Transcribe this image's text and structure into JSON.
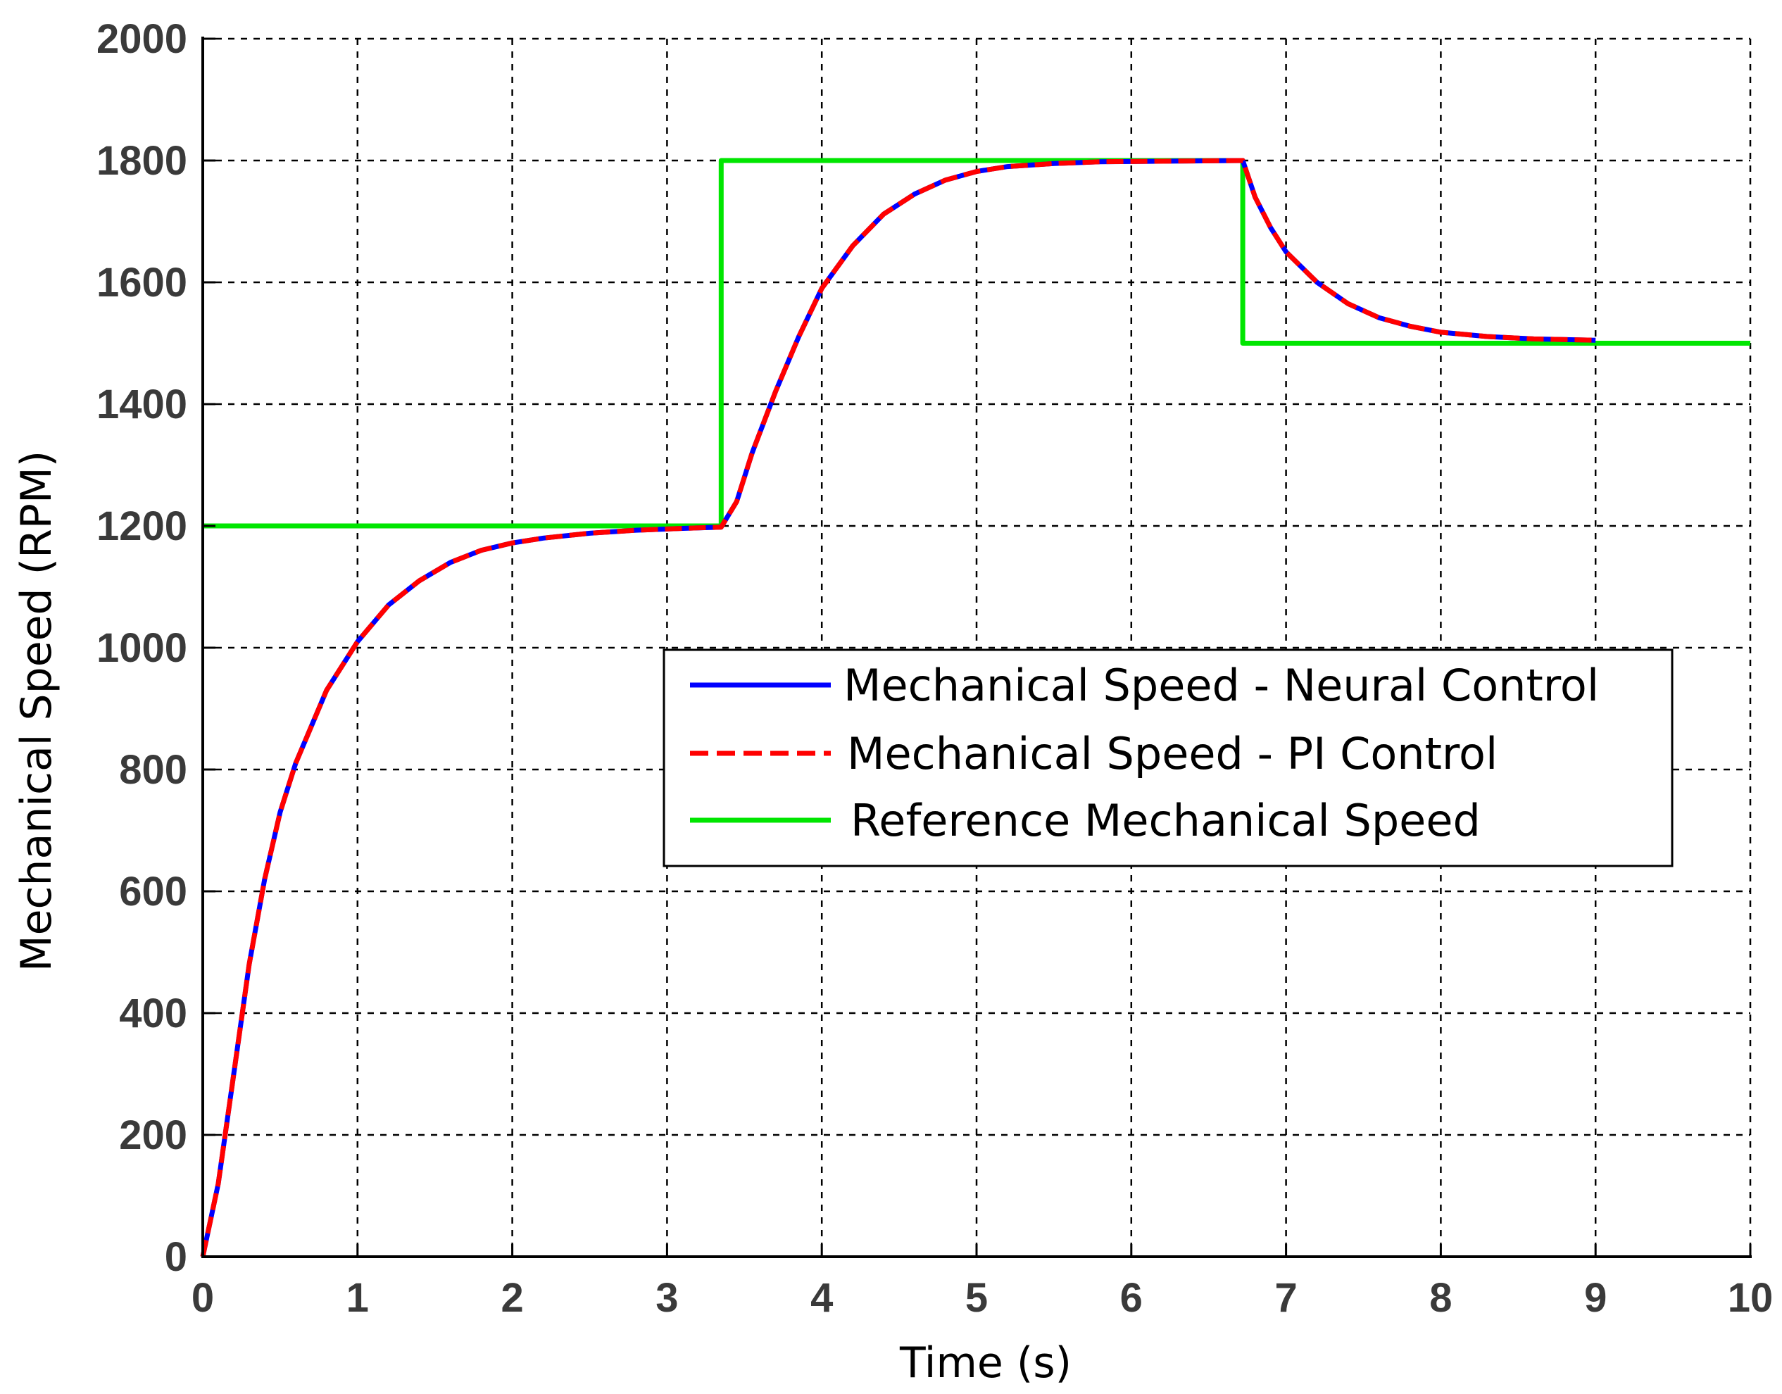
{
  "chart_data": {
    "type": "line",
    "title": "",
    "xlabel": "Time (s)",
    "ylabel": "Mechanical Speed (RPM)",
    "xlim": [
      0,
      10
    ],
    "ylim": [
      0,
      2000
    ],
    "xticks": [
      "0",
      "1",
      "2",
      "3",
      "4",
      "5",
      "6",
      "7",
      "8",
      "9",
      "10"
    ],
    "yticks": [
      "0",
      "200",
      "400",
      "600",
      "800",
      "1000",
      "1200",
      "1400",
      "1600",
      "1800",
      "2000"
    ],
    "grid": true,
    "legend_position": "center-right",
    "series": [
      {
        "name": "Mechanical Speed - Neural Control",
        "color": "#0000ff",
        "style": "solid",
        "points": [
          [
            0,
            0
          ],
          [
            0.1,
            120
          ],
          [
            0.2,
            300
          ],
          [
            0.3,
            480
          ],
          [
            0.4,
            620
          ],
          [
            0.5,
            730
          ],
          [
            0.6,
            810
          ],
          [
            0.8,
            930
          ],
          [
            1.0,
            1010
          ],
          [
            1.2,
            1070
          ],
          [
            1.4,
            1110
          ],
          [
            1.6,
            1140
          ],
          [
            1.8,
            1160
          ],
          [
            2.0,
            1172
          ],
          [
            2.2,
            1180
          ],
          [
            2.5,
            1188
          ],
          [
            2.8,
            1193
          ],
          [
            3.1,
            1196
          ],
          [
            3.35,
            1198
          ],
          [
            3.45,
            1240
          ],
          [
            3.55,
            1320
          ],
          [
            3.7,
            1420
          ],
          [
            3.85,
            1510
          ],
          [
            4.0,
            1590
          ],
          [
            4.2,
            1660
          ],
          [
            4.4,
            1712
          ],
          [
            4.6,
            1745
          ],
          [
            4.8,
            1768
          ],
          [
            5.0,
            1782
          ],
          [
            5.2,
            1790
          ],
          [
            5.5,
            1795
          ],
          [
            5.8,
            1798
          ],
          [
            6.72,
            1800
          ],
          [
            6.8,
            1740
          ],
          [
            6.9,
            1690
          ],
          [
            7.0,
            1650
          ],
          [
            7.2,
            1600
          ],
          [
            7.4,
            1565
          ],
          [
            7.6,
            1542
          ],
          [
            7.8,
            1528
          ],
          [
            8.0,
            1518
          ],
          [
            8.3,
            1511
          ],
          [
            8.6,
            1507
          ],
          [
            9.0,
            1505
          ]
        ]
      },
      {
        "name": "Mechanical Speed - PI Control",
        "color": "#ff0000",
        "style": "dashed",
        "points": [
          [
            0,
            0
          ],
          [
            0.1,
            120
          ],
          [
            0.2,
            300
          ],
          [
            0.3,
            480
          ],
          [
            0.4,
            620
          ],
          [
            0.5,
            730
          ],
          [
            0.6,
            810
          ],
          [
            0.8,
            930
          ],
          [
            1.0,
            1010
          ],
          [
            1.2,
            1070
          ],
          [
            1.4,
            1110
          ],
          [
            1.6,
            1140
          ],
          [
            1.8,
            1160
          ],
          [
            2.0,
            1172
          ],
          [
            2.2,
            1180
          ],
          [
            2.5,
            1188
          ],
          [
            2.8,
            1193
          ],
          [
            3.1,
            1196
          ],
          [
            3.35,
            1198
          ],
          [
            3.45,
            1240
          ],
          [
            3.55,
            1320
          ],
          [
            3.7,
            1420
          ],
          [
            3.85,
            1510
          ],
          [
            4.0,
            1590
          ],
          [
            4.2,
            1660
          ],
          [
            4.4,
            1712
          ],
          [
            4.6,
            1745
          ],
          [
            4.8,
            1768
          ],
          [
            5.0,
            1782
          ],
          [
            5.2,
            1790
          ],
          [
            5.5,
            1795
          ],
          [
            5.8,
            1798
          ],
          [
            6.72,
            1800
          ],
          [
            6.8,
            1740
          ],
          [
            6.9,
            1690
          ],
          [
            7.0,
            1650
          ],
          [
            7.2,
            1600
          ],
          [
            7.4,
            1565
          ],
          [
            7.6,
            1542
          ],
          [
            7.8,
            1528
          ],
          [
            8.0,
            1518
          ],
          [
            8.3,
            1511
          ],
          [
            8.6,
            1507
          ],
          [
            9.0,
            1505
          ]
        ]
      },
      {
        "name": "Reference Mechanical Speed",
        "color": "#00e600",
        "style": "solid",
        "points": [
          [
            0,
            1200
          ],
          [
            3.35,
            1200
          ],
          [
            3.35,
            1800
          ],
          [
            6.72,
            1800
          ],
          [
            6.72,
            1500
          ],
          [
            10,
            1500
          ]
        ]
      }
    ]
  }
}
